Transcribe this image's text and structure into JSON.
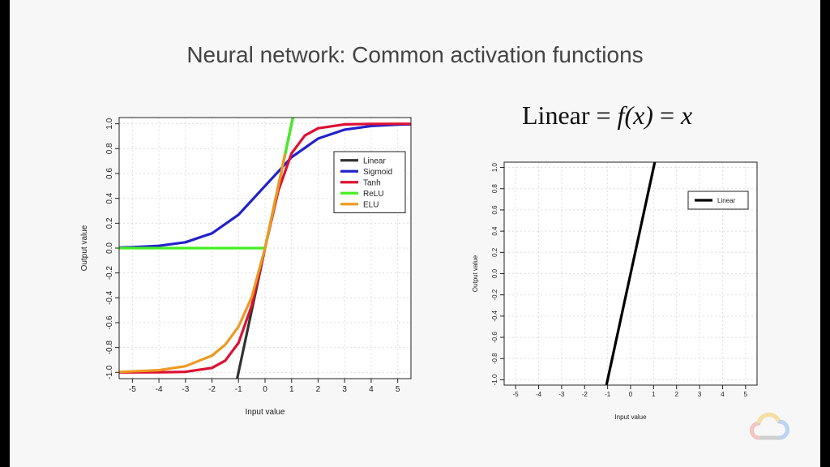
{
  "slide": {
    "title": "Neural network: Common activation functions",
    "formula": {
      "lhs": "Linear",
      "eq": "=",
      "fx": "f(x)",
      "rhs": "x"
    }
  },
  "chart_data": [
    {
      "type": "line",
      "xlabel": "Input value",
      "ylabel": "Output value",
      "xlim": [
        -5.5,
        5.5
      ],
      "ylim": [
        -1.05,
        1.05
      ],
      "xticks": [
        -5,
        -4,
        -3,
        -2,
        -1,
        0,
        1,
        2,
        3,
        4,
        5
      ],
      "yticks": [
        -1.0,
        -0.8,
        -0.6,
        -0.4,
        -0.2,
        0.0,
        0.2,
        0.4,
        0.6,
        0.8,
        1.0
      ],
      "grid": true,
      "legend": {
        "placement": "top-right"
      },
      "series": [
        {
          "name": "Linear",
          "color": "#333333",
          "x": [
            -1.05,
            1.05
          ],
          "y": [
            -1.05,
            1.05
          ]
        },
        {
          "name": "Sigmoid",
          "color": "#2222cc",
          "x": [
            -5.5,
            -5,
            -4,
            -3,
            -2,
            -1,
            0,
            1,
            2,
            3,
            4,
            5,
            5.5
          ],
          "y": [
            0.004,
            0.007,
            0.018,
            0.047,
            0.119,
            0.269,
            0.5,
            0.731,
            0.881,
            0.953,
            0.982,
            0.993,
            0.996
          ]
        },
        {
          "name": "Tanh",
          "color": "#dd1133",
          "x": [
            -5.5,
            -4,
            -3,
            -2,
            -1.5,
            -1,
            -0.5,
            0,
            0.5,
            1,
            1.5,
            2,
            3,
            4,
            5.5
          ],
          "y": [
            -1.0,
            -0.999,
            -0.995,
            -0.964,
            -0.905,
            -0.762,
            -0.462,
            0,
            0.462,
            0.762,
            0.905,
            0.964,
            0.995,
            0.999,
            1.0
          ]
        },
        {
          "name": "ReLU",
          "color": "#44ee22",
          "x": [
            -5.5,
            0,
            1.05
          ],
          "y": [
            0,
            0,
            1.05
          ]
        },
        {
          "name": "ELU",
          "color": "#ee9922",
          "x": [
            -5.5,
            -4,
            -3,
            -2,
            -1.5,
            -1,
            -0.5,
            0,
            0.5,
            0.75
          ],
          "y": [
            -0.996,
            -0.982,
            -0.95,
            -0.865,
            -0.777,
            -0.632,
            -0.393,
            0,
            0.5,
            0.75
          ]
        }
      ]
    },
    {
      "type": "line",
      "xlabel": "Input value",
      "ylabel": "Output value",
      "xlim": [
        -5.5,
        5.5
      ],
      "ylim": [
        -1.05,
        1.05
      ],
      "xticks": [
        -5,
        -4,
        -3,
        -2,
        -1,
        0,
        1,
        2,
        3,
        4,
        5
      ],
      "yticks": [
        -1.0,
        -0.8,
        -0.6,
        -0.4,
        -0.2,
        0.0,
        0.2,
        0.4,
        0.6,
        0.8,
        1.0
      ],
      "grid": true,
      "legend": {
        "placement": "top-right"
      },
      "series": [
        {
          "name": "Linear",
          "color": "#000000",
          "x": [
            -1.05,
            1.05
          ],
          "y": [
            -1.05,
            1.05
          ]
        }
      ]
    }
  ]
}
